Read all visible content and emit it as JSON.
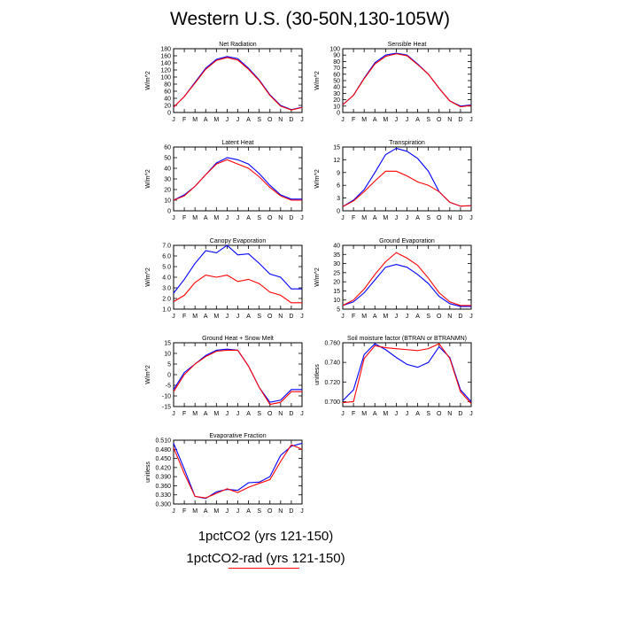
{
  "title": "Western U.S. (30-50N,130-105W)",
  "colors": {
    "run1": "#0000ff",
    "run2": "#ff0000"
  },
  "legend": {
    "entry1": "1pctCO2 (yrs 121-150)",
    "entry2": "1pctCO2-rad (yrs 121-150)"
  },
  "chart_data": [
    {
      "type": "line",
      "title": "Net Radiation",
      "ylabel": "W/m^2",
      "categories": [
        "J",
        "F",
        "M",
        "A",
        "M",
        "J",
        "J",
        "A",
        "S",
        "O",
        "N",
        "D",
        "J"
      ],
      "ylim": [
        0,
        180
      ],
      "yticks": [
        0,
        20,
        40,
        60,
        80,
        100,
        120,
        140,
        160,
        180
      ],
      "ytick_labels": [
        "0",
        "20",
        "40",
        "60",
        "80",
        "100",
        "120",
        "140",
        "160",
        "180"
      ],
      "series": [
        {
          "values": [
            15,
            45,
            85,
            125,
            150,
            158,
            152,
            125,
            92,
            50,
            20,
            8,
            15
          ]
        },
        {
          "values": [
            15,
            45,
            83,
            122,
            147,
            155,
            148,
            122,
            90,
            48,
            18,
            7,
            14
          ]
        }
      ]
    },
    {
      "type": "line",
      "title": "Sensible Heat",
      "ylabel": "W/m^2",
      "categories": [
        "J",
        "F",
        "M",
        "A",
        "M",
        "J",
        "J",
        "A",
        "S",
        "O",
        "N",
        "D",
        "J"
      ],
      "ylim": [
        0,
        100
      ],
      "yticks": [
        0,
        10,
        20,
        30,
        40,
        50,
        60,
        70,
        80,
        90,
        100
      ],
      "ytick_labels": [
        "0",
        "10",
        "20",
        "30",
        "40",
        "50",
        "60",
        "70",
        "80",
        "90",
        "100"
      ],
      "series": [
        {
          "values": [
            12,
            27,
            54,
            78,
            90,
            93,
            90,
            76,
            60,
            38,
            18,
            10,
            12
          ]
        },
        {
          "values": [
            12,
            27,
            53,
            76,
            88,
            92,
            89,
            75,
            60,
            38,
            18,
            9,
            11
          ]
        }
      ]
    },
    {
      "type": "line",
      "title": "Latent Heat",
      "ylabel": "W/m^2",
      "categories": [
        "J",
        "F",
        "M",
        "A",
        "M",
        "J",
        "J",
        "A",
        "S",
        "O",
        "N",
        "D",
        "J"
      ],
      "ylim": [
        0,
        60
      ],
      "yticks": [
        0,
        10,
        20,
        30,
        40,
        50,
        60
      ],
      "ytick_labels": [
        "0",
        "10",
        "20",
        "30",
        "40",
        "50",
        "60"
      ],
      "series": [
        {
          "values": [
            10,
            15,
            23,
            34,
            45,
            50,
            48,
            44,
            35,
            24,
            15,
            11,
            11
          ]
        },
        {
          "values": [
            10,
            14,
            23,
            34,
            44,
            48,
            44,
            40,
            32,
            22,
            14,
            10,
            10
          ]
        }
      ]
    },
    {
      "type": "line",
      "title": "Transpiration",
      "ylabel": "W/m^2",
      "categories": [
        "J",
        "F",
        "M",
        "A",
        "M",
        "J",
        "J",
        "A",
        "S",
        "O",
        "N",
        "D",
        "J"
      ],
      "ylim": [
        0,
        15
      ],
      "yticks": [
        0,
        3,
        6,
        9,
        12,
        15
      ],
      "ytick_labels": [
        "0",
        "3",
        "6",
        "9",
        "12",
        "15"
      ],
      "series": [
        {
          "values": [
            1.0,
            2.5,
            5.0,
            9.0,
            13.2,
            14.7,
            14.0,
            12.3,
            9.3,
            4.5,
            2.0,
            1.1,
            1.2
          ]
        },
        {
          "values": [
            1.0,
            2.3,
            4.5,
            7.0,
            9.3,
            9.3,
            8.2,
            6.8,
            6.0,
            4.5,
            2.0,
            1.1,
            1.2
          ]
        }
      ]
    },
    {
      "type": "line",
      "title": "Canopy Evaporation",
      "ylabel": "W/m^2",
      "categories": [
        "J",
        "F",
        "M",
        "A",
        "M",
        "J",
        "J",
        "A",
        "S",
        "O",
        "N",
        "D",
        "J"
      ],
      "ylim": [
        1.0,
        7.0
      ],
      "yticks": [
        1.0,
        2.0,
        3.0,
        4.0,
        5.0,
        6.0,
        7.0
      ],
      "ytick_labels": [
        "1.0",
        "2.0",
        "3.0",
        "4.0",
        "5.0",
        "6.0",
        "7.0"
      ],
      "series": [
        {
          "values": [
            2.5,
            3.8,
            5.3,
            6.5,
            6.3,
            7.0,
            6.1,
            6.2,
            5.3,
            4.3,
            4.0,
            2.9,
            2.9
          ]
        },
        {
          "values": [
            1.7,
            2.3,
            3.5,
            4.2,
            4.0,
            4.2,
            3.6,
            3.8,
            3.4,
            2.6,
            2.3,
            1.6,
            1.6
          ]
        }
      ]
    },
    {
      "type": "line",
      "title": "Ground Evaporation",
      "ylabel": "W/m^2",
      "categories": [
        "J",
        "F",
        "M",
        "A",
        "M",
        "J",
        "J",
        "A",
        "S",
        "O",
        "N",
        "D",
        "J"
      ],
      "ylim": [
        5,
        40
      ],
      "yticks": [
        5,
        10,
        15,
        20,
        25,
        30,
        35,
        40
      ],
      "ytick_labels": [
        "5",
        "10",
        "15",
        "20",
        "25",
        "30",
        "35",
        "40"
      ],
      "series": [
        {
          "values": [
            7,
            9,
            14,
            21,
            28,
            29.5,
            28,
            24,
            19,
            12,
            8,
            6.5,
            6.5
          ]
        },
        {
          "values": [
            7,
            10,
            16,
            24,
            31,
            36,
            33,
            29,
            22,
            14,
            9,
            7,
            7
          ]
        }
      ]
    },
    {
      "type": "line",
      "title": "Ground Heat + Snow Melt",
      "ylabel": "W/m^2",
      "categories": [
        "J",
        "F",
        "M",
        "A",
        "M",
        "J",
        "J",
        "A",
        "S",
        "O",
        "N",
        "D",
        "J"
      ],
      "ylim": [
        -15,
        15
      ],
      "yticks": [
        -15,
        -10,
        -5,
        0,
        5,
        10,
        15
      ],
      "ytick_labels": [
        "-15",
        "-10",
        "-5",
        "0",
        "5",
        "10",
        "15"
      ],
      "series": [
        {
          "values": [
            -7,
            1,
            5,
            9,
            11.5,
            12,
            11.5,
            4,
            -6,
            -13,
            -12,
            -7,
            -7
          ]
        },
        {
          "values": [
            -8,
            0,
            5,
            8.5,
            11,
            11.5,
            11.5,
            4,
            -6,
            -14,
            -13,
            -8,
            -8
          ]
        }
      ]
    },
    {
      "type": "line",
      "title": "Soil moisture factor (BTRAN or BTRANMN)",
      "ylabel": "unitless",
      "categories": [
        "J",
        "F",
        "M",
        "A",
        "M",
        "J",
        "J",
        "A",
        "S",
        "O",
        "N",
        "D",
        "J"
      ],
      "ylim": [
        0.695,
        0.76
      ],
      "yticks": [
        0.7,
        0.72,
        0.74,
        0.76
      ],
      "ytick_labels": [
        "0.700",
        "0.720",
        "0.740",
        "0.760"
      ],
      "series": [
        {
          "values": [
            0.701,
            0.712,
            0.748,
            0.759,
            0.753,
            0.745,
            0.738,
            0.735,
            0.74,
            0.756,
            0.745,
            0.712,
            0.7
          ]
        },
        {
          "values": [
            0.699,
            0.7,
            0.744,
            0.757,
            0.755,
            0.754,
            0.753,
            0.752,
            0.754,
            0.759,
            0.744,
            0.71,
            0.698
          ]
        }
      ]
    },
    {
      "type": "line",
      "title": "Evaporative Fraction",
      "ylabel": "unitless",
      "categories": [
        "J",
        "F",
        "M",
        "A",
        "M",
        "J",
        "J",
        "A",
        "S",
        "O",
        "N",
        "D",
        "J"
      ],
      "ylim": [
        0.3,
        0.51
      ],
      "yticks": [
        0.3,
        0.33,
        0.36,
        0.39,
        0.42,
        0.45,
        0.48,
        0.51
      ],
      "ytick_labels": [
        "0.300",
        "0.330",
        "0.360",
        "0.390",
        "0.420",
        "0.450",
        "0.480",
        "0.510"
      ],
      "series": [
        {
          "values": [
            0.5,
            0.415,
            0.325,
            0.318,
            0.34,
            0.348,
            0.345,
            0.37,
            0.372,
            0.39,
            0.46,
            0.49,
            0.5
          ]
        },
        {
          "values": [
            0.485,
            0.4,
            0.325,
            0.32,
            0.335,
            0.35,
            0.338,
            0.355,
            0.368,
            0.38,
            0.44,
            0.495,
            0.48
          ]
        }
      ]
    }
  ]
}
